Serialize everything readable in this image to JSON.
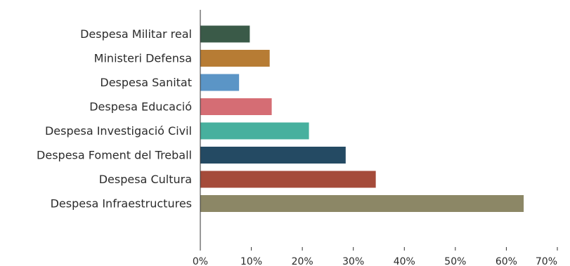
{
  "chart_data": {
    "type": "bar",
    "orientation": "horizontal",
    "categories": [
      "Despesa Militar real",
      "Ministeri Defensa",
      "Despesa Sanitat",
      "Despesa Educació",
      "Despesa Investigació Civil",
      "Despesa Foment del Treball",
      "Despesa Cultura",
      "Despesa Infraestructures"
    ],
    "values": [
      9.7,
      13.6,
      7.6,
      14.0,
      21.3,
      28.5,
      34.4,
      63.4
    ],
    "colors": [
      "#3a5a48",
      "#b77c34",
      "#5b95c6",
      "#d56d74",
      "#47b09e",
      "#244a63",
      "#a54b3a",
      "#8c8766"
    ],
    "xlim": [
      0,
      70
    ],
    "xticks": [
      0,
      10,
      20,
      30,
      40,
      50,
      60,
      70
    ],
    "xtick_labels": [
      "0%",
      "10%",
      "20%",
      "30%",
      "40%",
      "50%",
      "60%",
      "70%"
    ],
    "grid": false,
    "legend": "none",
    "title": "",
    "xlabel": "",
    "ylabel": ""
  }
}
